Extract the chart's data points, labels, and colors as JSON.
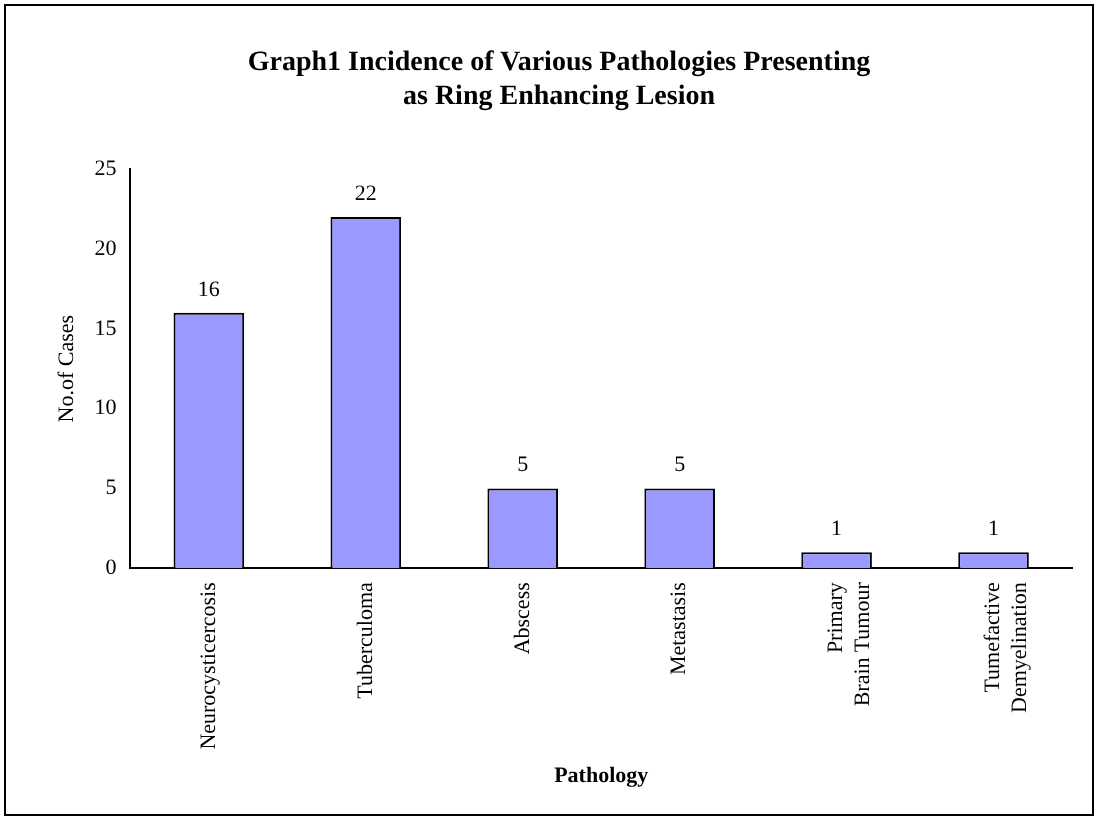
{
  "chart_data": {
    "type": "bar",
    "title": "Graph1 Incidence of Various Pathologies Presenting as Ring Enhancing Lesion",
    "xlabel": "Pathology",
    "ylabel": "No.of Cases",
    "categories": [
      "Neurocysticercosis",
      "Tuberculoma",
      "Abscess",
      "Metastasis",
      "Primary Brain Tumour",
      "Tumefactive Demyelination"
    ],
    "values": [
      16,
      22,
      5,
      5,
      1,
      1
    ],
    "color": "#9999ff",
    "ylim": [
      0,
      25
    ],
    "yticks": [
      0,
      5,
      10,
      15,
      20,
      25
    ],
    "grid": false,
    "legend": false,
    "data_labels": true
  }
}
